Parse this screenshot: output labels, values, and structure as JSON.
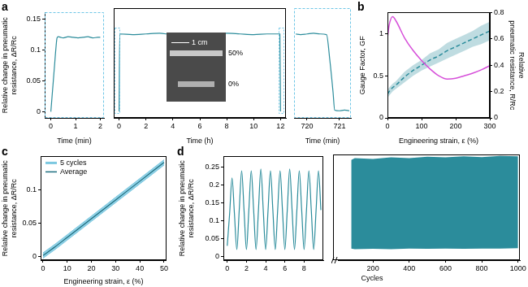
{
  "chart_data": [
    {
      "type": "line",
      "title": "a",
      "x_label": "Time (min)",
      "y_label": [
        "Relative change in pneumatic",
        "resistance, ΔR/Rc"
      ],
      "x": [
        0,
        0.05,
        0.1,
        0.15,
        0.2,
        0.25,
        0.3,
        0.4,
        0.5,
        0.7,
        0.9,
        1.1,
        1.3,
        1.5,
        1.7,
        1.9,
        2
      ],
      "series": [
        {
          "color": "#2b8c9b",
          "values": [
            0,
            0.025,
            0.05,
            0.075,
            0.1,
            0.119,
            0.121,
            0.12,
            0.119,
            0.121,
            0.12,
            0.119,
            0.12,
            0.121,
            0.119,
            0.12,
            0.12
          ]
        }
      ],
      "xlim": [
        -0.25,
        2.15
      ],
      "xticks": [
        0,
        1,
        2
      ],
      "ylim": [
        -0.01,
        0.16
      ],
      "yticks": [
        0,
        0.05,
        0.1,
        0.15
      ],
      "grid": false
    },
    {
      "type": "line",
      "x_label": "Time (h)",
      "x": [
        0,
        0.05,
        1,
        2,
        3,
        4,
        5,
        6,
        7,
        8,
        9,
        10,
        11,
        11.95,
        12
      ],
      "series": [
        {
          "color": "#2b8c9b",
          "values": [
            0,
            0.12,
            0.119,
            0.12,
            0.121,
            0.119,
            0.12,
            0.12,
            0.119,
            0.121,
            0.12,
            0.119,
            0.12,
            0.12,
            0
          ]
        }
      ],
      "annotations": [
        "1 cm",
        "50%",
        "0%"
      ],
      "xlim": [
        -0.4,
        12.4
      ],
      "xticks": [
        0,
        2,
        4,
        6,
        8,
        10,
        12
      ],
      "ylim": [
        -0.01,
        0.16
      ],
      "grid": false,
      "tick_labels": "x"
    },
    {
      "type": "line",
      "x_label": "Time (min)",
      "x": [
        719.65,
        719.8,
        720,
        720.2,
        720.4,
        720.6,
        720.7,
        720.8,
        720.85,
        721,
        721.15,
        721.3
      ],
      "series": [
        {
          "color": "#2b8c9b",
          "values": [
            0.12,
            0.119,
            0.12,
            0.121,
            0.12,
            0.119,
            0.08,
            0.03,
            0.002,
            0.001,
            0.002,
            0.001
          ]
        }
      ],
      "xlim": [
        719.6,
        721.35
      ],
      "xticks": [
        720,
        721
      ],
      "ylim": [
        -0.01,
        0.16
      ],
      "grid": false,
      "tick_labels": "x"
    },
    {
      "type": "line",
      "title": "b",
      "x_label": "Engineering strain, ε (%)",
      "y_label": "Gauge Factor, GF",
      "y2_label": [
        "Relative",
        "pneumatic resistance, R/Rc"
      ],
      "x": [
        0,
        5,
        15,
        25,
        50,
        75,
        100,
        125,
        150,
        175,
        200,
        225,
        250,
        275,
        300
      ],
      "series": [
        {
          "color": "#d64fd9",
          "values": [
            0.95,
            1.1,
            1.2,
            1.15,
            0.95,
            0.8,
            0.68,
            0.58,
            0.5,
            0.46,
            0.47,
            0.5,
            0.53,
            0.57,
            0.62
          ]
        },
        {
          "color": "#2b8c9b",
          "line_style": "dashed",
          "axis": "y2",
          "values": [
            0.18,
            0.2,
            0.23,
            0.25,
            0.31,
            0.36,
            0.4,
            0.44,
            0.47,
            0.51,
            0.54,
            0.57,
            0.6,
            0.63,
            0.66
          ],
          "low": [
            0.15,
            0.17,
            0.2,
            0.22,
            0.27,
            0.32,
            0.36,
            0.39,
            0.42,
            0.45,
            0.48,
            0.51,
            0.54,
            0.56,
            0.59
          ],
          "high": [
            0.21,
            0.23,
            0.26,
            0.28,
            0.35,
            0.4,
            0.44,
            0.49,
            0.52,
            0.57,
            0.6,
            0.63,
            0.66,
            0.7,
            0.73
          ]
        }
      ],
      "xlim": [
        0,
        300
      ],
      "xticks": [
        0,
        100,
        200,
        300
      ],
      "ylim": [
        0,
        1.25
      ],
      "yticks": [
        0,
        0.5,
        1
      ],
      "y2lim": [
        0,
        0.8
      ],
      "y2ticks": [
        0,
        0.2,
        0.4,
        0.6,
        0.8
      ],
      "grid": false
    },
    {
      "type": "line",
      "title": "c",
      "x_label": "Engineering strain, ε (%)",
      "y_label": [
        "Relative change in pneumatic",
        "resistance, ΔR/Rc"
      ],
      "x": [
        0,
        5,
        10,
        15,
        20,
        25,
        30,
        35,
        40,
        45,
        50
      ],
      "series": [
        {
          "name": "5 cycles",
          "color": "#7cc8e0",
          "low": [
            -0.002,
            0.011,
            0.025,
            0.039,
            0.053,
            0.067,
            0.081,
            0.095,
            0.109,
            0.123,
            0.137
          ],
          "high": [
            0.006,
            0.019,
            0.033,
            0.047,
            0.061,
            0.075,
            0.089,
            0.103,
            0.117,
            0.131,
            0.145
          ]
        },
        {
          "name": "Average",
          "color": "#1d6f80",
          "values": [
            0.002,
            0.015,
            0.029,
            0.043,
            0.057,
            0.071,
            0.085,
            0.099,
            0.113,
            0.127,
            0.141
          ]
        }
      ],
      "legend": "top left",
      "xlim": [
        -1,
        51
      ],
      "xticks": [
        0,
        10,
        20,
        30,
        40,
        50
      ],
      "ylim": [
        -0.005,
        0.15
      ],
      "yticks": [
        0,
        0.05,
        0.1
      ],
      "grid": false
    },
    {
      "type": "line",
      "title": "d",
      "y_label": [
        "Relative change in pneumatic",
        "resistance, ΔR/Rc"
      ],
      "x": [
        0,
        0.25,
        0.5,
        0.75,
        1,
        1.25,
        1.5,
        1.75,
        2,
        2.25,
        2.5,
        2.75,
        3,
        3.25,
        3.5,
        3.75,
        4,
        4.25,
        4.5,
        4.75,
        5,
        5.25,
        5.5,
        5.75,
        6,
        6.25,
        6.5,
        6.75,
        7,
        7.25,
        7.5,
        7.75,
        8,
        8.25,
        8.5,
        8.75,
        9,
        9.25,
        9.5,
        9.75
      ],
      "series": [
        {
          "color": "#2b8c9b",
          "values": [
            0.03,
            0.12,
            0.22,
            0.12,
            0.02,
            0.13,
            0.24,
            0.13,
            0.02,
            0.13,
            0.24,
            0.13,
            0.02,
            0.13,
            0.245,
            0.13,
            0.02,
            0.13,
            0.24,
            0.13,
            0.02,
            0.13,
            0.24,
            0.13,
            0.02,
            0.13,
            0.245,
            0.13,
            0.02,
            0.13,
            0.24,
            0.13,
            0.02,
            0.13,
            0.24,
            0.13,
            0.02,
            0.13,
            0.24,
            0.13
          ]
        }
      ],
      "xlim": [
        -0.4,
        10
      ],
      "xticks": [
        0,
        2,
        4,
        6,
        8
      ],
      "ylim": [
        -0.01,
        0.28
      ],
      "yticks": [
        0,
        0.05,
        0.1,
        0.15,
        0.2,
        0.25
      ],
      "grid": false
    },
    {
      "type": "line",
      "x_label": "Cycles",
      "x": [
        80,
        100,
        200,
        300,
        400,
        500,
        600,
        700,
        800,
        900,
        1000
      ],
      "series": [
        {
          "color": "#2b8c9b",
          "low": [
            0.022,
            0.02,
            0.021,
            0.02,
            0.022,
            0.021,
            0.022,
            0.021,
            0.022,
            0.022,
            0.023
          ],
          "high": [
            0.265,
            0.27,
            0.268,
            0.272,
            0.27,
            0.274,
            0.272,
            0.275,
            0.273,
            0.276,
            0.275
          ]
        }
      ],
      "xlim": [
        -20,
        1010
      ],
      "xticks": [
        200,
        400,
        600,
        800,
        1000
      ],
      "ylim": [
        -0.01,
        0.28
      ],
      "grid": false,
      "tick_labels": "x"
    }
  ]
}
